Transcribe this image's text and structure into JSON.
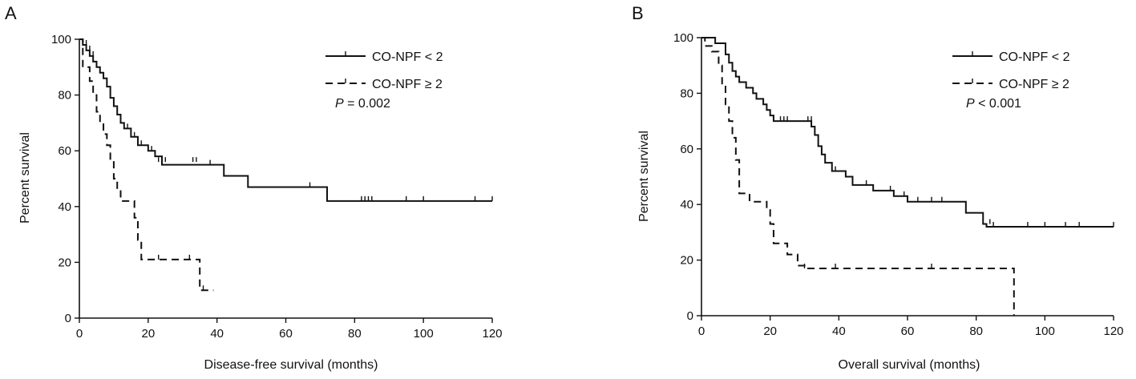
{
  "chart_data": [
    {
      "panel_label": "A",
      "type": "line",
      "subtype": "kaplan-meier",
      "xlabel": "Disease-free survival (months)",
      "ylabel": "Percent survival",
      "xlim": [
        0,
        120
      ],
      "ylim": [
        0,
        100
      ],
      "xticks": [
        0,
        20,
        40,
        60,
        80,
        100,
        120
      ],
      "yticks": [
        0,
        20,
        40,
        60,
        80,
        100
      ],
      "grid": false,
      "legend_position": "top-right",
      "p_value": {
        "label": "P",
        "text": " = 0.002"
      },
      "series": [
        {
          "name": "CO-NPF < 2",
          "style": "solid",
          "steps": [
            [
              0,
              100
            ],
            [
              1,
              98
            ],
            [
              2,
              96
            ],
            [
              3,
              94
            ],
            [
              4,
              92
            ],
            [
              5,
              90
            ],
            [
              6,
              88
            ],
            [
              7,
              86
            ],
            [
              8,
              83
            ],
            [
              9,
              79
            ],
            [
              10,
              76
            ],
            [
              11,
              73
            ],
            [
              12,
              70
            ],
            [
              13,
              68
            ],
            [
              15,
              65
            ],
            [
              17,
              62
            ],
            [
              20,
              60
            ],
            [
              22,
              58
            ],
            [
              24,
              55
            ],
            [
              42,
              51
            ],
            [
              49,
              47
            ],
            [
              72,
              42
            ],
            [
              120,
              42
            ]
          ],
          "censored": [
            [
              2,
              98
            ],
            [
              3,
              96
            ],
            [
              4,
              94
            ],
            [
              6,
              88
            ],
            [
              8,
              83
            ],
            [
              10,
              76
            ],
            [
              14,
              68
            ],
            [
              16,
              65
            ],
            [
              18,
              62
            ],
            [
              21,
              60
            ],
            [
              23,
              56
            ],
            [
              24,
              56
            ],
            [
              25,
              56
            ],
            [
              33,
              56
            ],
            [
              34,
              56
            ],
            [
              38,
              55
            ],
            [
              42,
              51
            ],
            [
              67,
              47
            ],
            [
              82,
              42
            ],
            [
              83,
              42
            ],
            [
              84,
              42
            ],
            [
              85,
              42
            ],
            [
              95,
              42
            ],
            [
              100,
              42
            ],
            [
              115,
              42
            ],
            [
              120,
              42
            ]
          ]
        },
        {
          "name": "CO-NPF ≥ 2",
          "style": "dashed",
          "steps": [
            [
              0,
              100
            ],
            [
              1,
              90
            ],
            [
              3,
              85
            ],
            [
              4,
              80
            ],
            [
              5,
              74
            ],
            [
              6,
              70
            ],
            [
              7,
              66
            ],
            [
              8,
              62
            ],
            [
              9,
              56
            ],
            [
              10,
              50
            ],
            [
              11,
              46
            ],
            [
              12,
              42
            ],
            [
              16,
              36
            ],
            [
              17,
              28
            ],
            [
              18,
              21
            ],
            [
              35,
              10
            ],
            [
              39,
              10
            ]
          ],
          "censored": [
            [
              5,
              74
            ],
            [
              23,
              21
            ],
            [
              32,
              21
            ],
            [
              36,
              10
            ]
          ]
        }
      ]
    },
    {
      "panel_label": "B",
      "type": "line",
      "subtype": "kaplan-meier",
      "xlabel": "Overall survival (months)",
      "ylabel": "Percent survival",
      "xlim": [
        0,
        120
      ],
      "ylim": [
        0,
        100
      ],
      "xticks": [
        0,
        20,
        40,
        60,
        80,
        100,
        120
      ],
      "yticks": [
        0,
        20,
        40,
        60,
        80,
        100
      ],
      "grid": false,
      "legend_position": "top-right",
      "p_value": {
        "label": "P",
        "text": " < 0.001"
      },
      "series": [
        {
          "name": "CO-NPF < 2",
          "style": "solid",
          "steps": [
            [
              0,
              100
            ],
            [
              4,
              98
            ],
            [
              7,
              94
            ],
            [
              8,
              91
            ],
            [
              9,
              88
            ],
            [
              10,
              86
            ],
            [
              11,
              84
            ],
            [
              13,
              82
            ],
            [
              15,
              80
            ],
            [
              16,
              78
            ],
            [
              18,
              76
            ],
            [
              19,
              74
            ],
            [
              20,
              72
            ],
            [
              21,
              70
            ],
            [
              32,
              68
            ],
            [
              33,
              65
            ],
            [
              34,
              61
            ],
            [
              35,
              58
            ],
            [
              36,
              55
            ],
            [
              38,
              52
            ],
            [
              42,
              50
            ],
            [
              44,
              47
            ],
            [
              50,
              45
            ],
            [
              56,
              43
            ],
            [
              60,
              41
            ],
            [
              77,
              37
            ],
            [
              82,
              33
            ],
            [
              83,
              32
            ],
            [
              120,
              32
            ]
          ],
          "censored": [
            [
              23,
              70
            ],
            [
              24,
              70
            ],
            [
              25,
              70
            ],
            [
              31,
              70
            ],
            [
              32,
              70
            ],
            [
              39,
              52
            ],
            [
              44,
              47
            ],
            [
              48,
              47
            ],
            [
              55,
              45
            ],
            [
              59,
              43
            ],
            [
              63,
              41
            ],
            [
              67,
              41
            ],
            [
              70,
              41
            ],
            [
              84,
              33
            ],
            [
              85,
              32
            ],
            [
              95,
              32
            ],
            [
              100,
              32
            ],
            [
              106,
              32
            ],
            [
              110,
              32
            ],
            [
              120,
              32
            ]
          ]
        },
        {
          "name": "CO-NPF ≥ 2",
          "style": "dashed",
          "steps": [
            [
              0,
              100
            ],
            [
              1,
              97
            ],
            [
              3,
              95
            ],
            [
              5,
              90
            ],
            [
              6,
              83
            ],
            [
              7,
              76
            ],
            [
              8,
              70
            ],
            [
              9,
              64
            ],
            [
              10,
              56
            ],
            [
              11,
              44
            ],
            [
              14,
              41
            ],
            [
              19,
              38
            ],
            [
              20,
              33
            ],
            [
              21,
              26
            ],
            [
              25,
              22
            ],
            [
              28,
              18
            ],
            [
              30,
              17
            ],
            [
              91,
              17
            ],
            [
              91,
              0
            ]
          ],
          "censored": [
            [
              30,
              17
            ],
            [
              39,
              17
            ],
            [
              67,
              17
            ]
          ]
        }
      ]
    }
  ]
}
